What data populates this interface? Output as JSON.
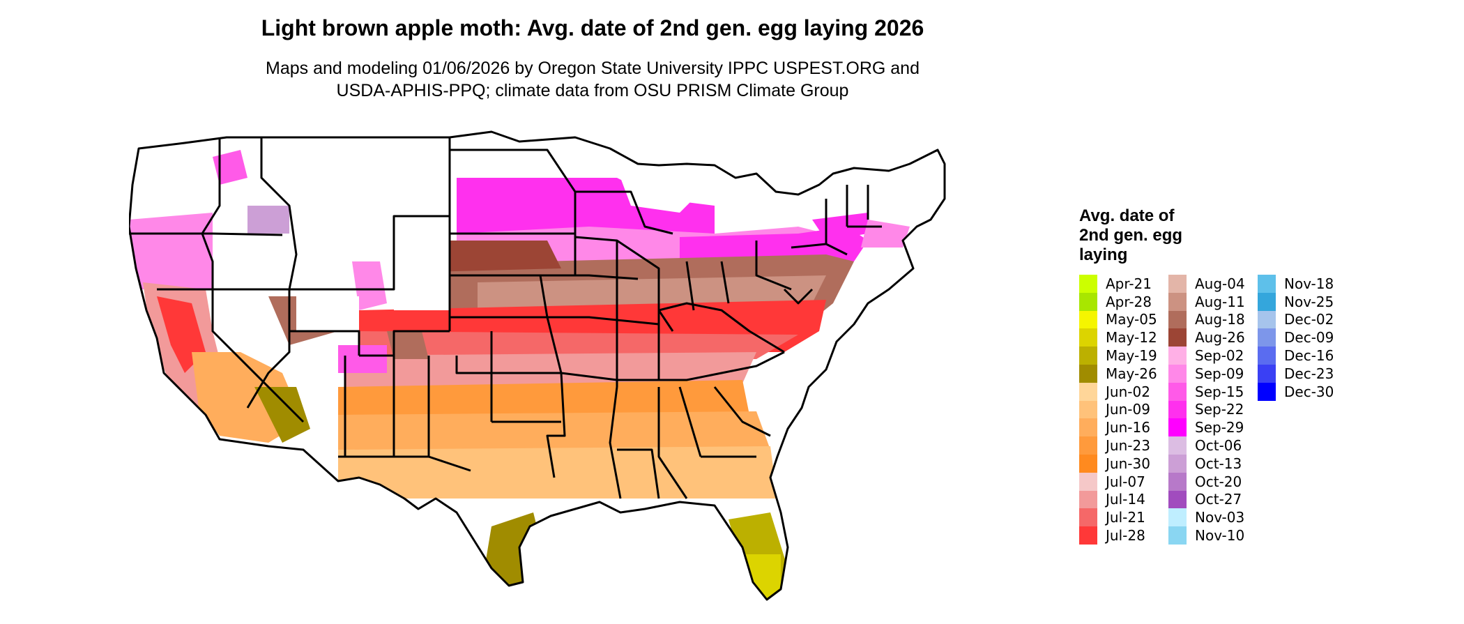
{
  "title": "Light brown apple moth: Avg. date of 2nd gen. egg laying 2026",
  "subtitle_lines": [
    "Maps and modeling 01/06/2026 by Oregon State University IPPC USPEST.ORG and",
    "USDA-APHIS-PPQ; climate data from OSU PRISM Climate Group"
  ],
  "legend": {
    "title_lines": [
      "Avg. date of",
      "2nd gen. egg",
      "laying"
    ],
    "columns": [
      [
        {
          "label": "Apr-21",
          "color": "#ccff00"
        },
        {
          "label": "Apr-28",
          "color": "#a8e600"
        },
        {
          "label": "May-05",
          "color": "#f5f500"
        },
        {
          "label": "May-12",
          "color": "#dcd400"
        },
        {
          "label": "May-19",
          "color": "#bcb000"
        },
        {
          "label": "May-26",
          "color": "#a08c00"
        },
        {
          "label": "Jun-02",
          "color": "#ffd699"
        },
        {
          "label": "Jun-09",
          "color": "#ffc27a"
        },
        {
          "label": "Jun-16",
          "color": "#ffad5c"
        },
        {
          "label": "Jun-23",
          "color": "#ff9a3c"
        },
        {
          "label": "Jun-30",
          "color": "#ff8a1f"
        },
        {
          "label": "Jul-07",
          "color": "#f5c8c8"
        },
        {
          "label": "Jul-14",
          "color": "#f29a9a"
        },
        {
          "label": "Jul-21",
          "color": "#f56868"
        },
        {
          "label": "Jul-28",
          "color": "#ff3838"
        }
      ],
      [
        {
          "label": "Aug-04",
          "color": "#e3b5a8"
        },
        {
          "label": "Aug-11",
          "color": "#cc9282"
        },
        {
          "label": "Aug-18",
          "color": "#b06d5c"
        },
        {
          "label": "Aug-26",
          "color": "#9c4535"
        },
        {
          "label": "Sep-02",
          "color": "#ffb0e6"
        },
        {
          "label": "Sep-09",
          "color": "#ff88e8"
        },
        {
          "label": "Sep-15",
          "color": "#ff5ae8"
        },
        {
          "label": "Sep-22",
          "color": "#ff30ee"
        },
        {
          "label": "Sep-29",
          "color": "#ff00ff"
        },
        {
          "label": "Oct-06",
          "color": "#dcbde3"
        },
        {
          "label": "Oct-13",
          "color": "#cc9fd6"
        },
        {
          "label": "Oct-20",
          "color": "#b779c9"
        },
        {
          "label": "Oct-27",
          "color": "#a14cbe"
        },
        {
          "label": "Nov-03",
          "color": "#bfeeff"
        },
        {
          "label": "Nov-10",
          "color": "#8ad6f2"
        }
      ],
      [
        {
          "label": "Nov-18",
          "color": "#5ec0ea"
        },
        {
          "label": "Nov-25",
          "color": "#34a6dc"
        },
        {
          "label": "Dec-02",
          "color": "#a6c4ec"
        },
        {
          "label": "Dec-09",
          "color": "#7d96ea"
        },
        {
          "label": "Dec-16",
          "color": "#5a6cf0"
        },
        {
          "label": "Dec-23",
          "color": "#3a40f4"
        },
        {
          "label": "Dec-30",
          "color": "#0000ff"
        }
      ]
    ]
  }
}
